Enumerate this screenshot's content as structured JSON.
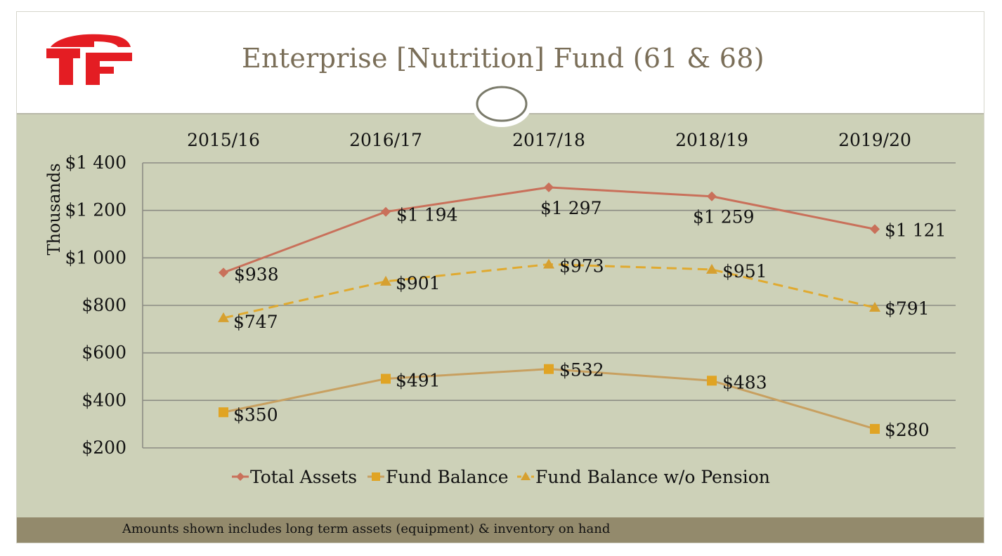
{
  "slide": {
    "title": "Enterprise [Nutrition] Fund (61 & 68)",
    "footnote": "Amounts shown includes long term assets (equipment) & inventory on hand",
    "logo_icon": "sf-logo-icon"
  },
  "colors": {
    "band": "#cdd1b8",
    "footer": "#938a6c",
    "total_assets": "#c9705a",
    "fund_balance": "#c8a060",
    "fund_balance_wo_pension": "#e0aa30",
    "logo_red": "#e41d23"
  },
  "chart_data": {
    "type": "line",
    "title": "",
    "ylabel": "Thousands",
    "xlabel": "",
    "categories": [
      "2015/16",
      "2016/17",
      "2017/18",
      "2018/19",
      "2019/20"
    ],
    "ylim": [
      200,
      1400
    ],
    "yticks": [
      1400,
      1200,
      1000,
      800,
      600,
      400,
      200
    ],
    "ytick_labels": [
      "$1 400",
      "$1 200",
      "$1 000",
      "$800",
      "$600",
      "$400",
      "$200"
    ],
    "x_axis_position": "top",
    "legend_position": "bottom",
    "series": [
      {
        "name": "Total Assets",
        "marker": "diamond",
        "style": "solid",
        "values": [
          938,
          1194,
          1297,
          1259,
          1121
        ],
        "labels": [
          "$938",
          "$1 194",
          "$1 297",
          "$1 259",
          "$1 121"
        ]
      },
      {
        "name": "Fund Balance",
        "marker": "square",
        "style": "solid",
        "values": [
          350,
          491,
          532,
          483,
          280
        ],
        "labels": [
          "$350",
          "$491",
          "$532",
          "$483",
          "$280"
        ]
      },
      {
        "name": "Fund Balance w/o Pension",
        "marker": "triangle",
        "style": "dashed",
        "values": [
          747,
          901,
          973,
          951,
          791
        ],
        "labels": [
          "$747",
          "$901",
          "$973",
          "$951",
          "$791"
        ]
      }
    ]
  }
}
